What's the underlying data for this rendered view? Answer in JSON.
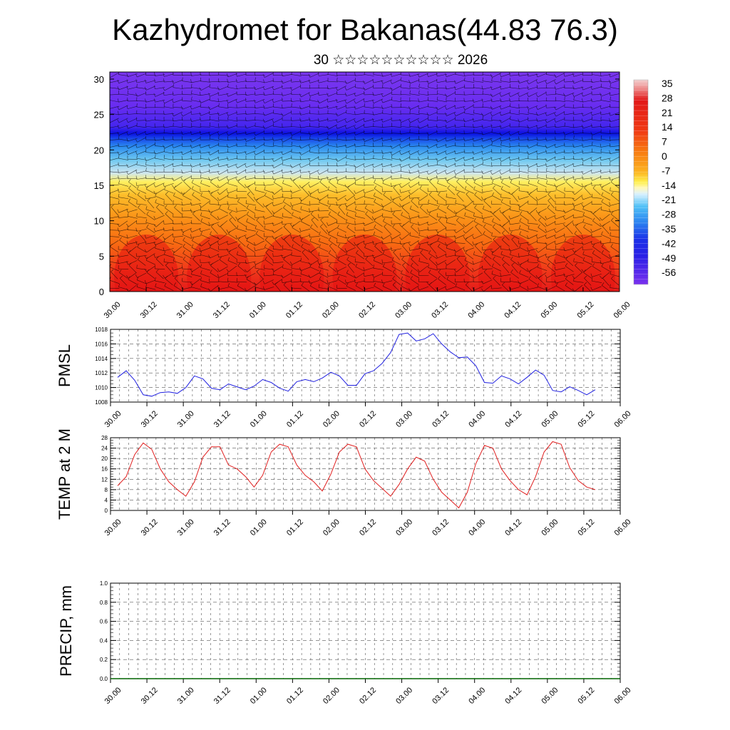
{
  "title": "Kazhydromet for Bakanas(44.83 76.3)",
  "subtitle": "30 ☆☆☆☆☆☆☆☆☆☆ 2026",
  "time_ticks": [
    "30.00",
    "30.12",
    "31.00",
    "31.12",
    "01.00",
    "01.12",
    "02.00",
    "02.12",
    "03.00",
    "03.12",
    "04.00",
    "04.12",
    "05.00",
    "05.12",
    "06.00"
  ],
  "colors": {
    "pmsl_line": "#2020e0",
    "temp_line": "#e02020",
    "precip_line": "#006400",
    "grid": "#555555"
  },
  "chart_data": [
    {
      "type": "heatmap",
      "name": "cross-section",
      "ylim": [
        0,
        31
      ],
      "yticks": [
        "0",
        "5",
        "10",
        "15",
        "20",
        "25",
        "30"
      ],
      "x_categories": "time_ticks",
      "colorbar_labels": [
        "35",
        "28",
        "21",
        "14",
        "7",
        "0",
        "-7",
        "-14",
        "-21",
        "-28",
        "-35",
        "-42",
        "-49",
        "-56"
      ],
      "colorbar_range": [
        -63,
        42
      ],
      "freezing_level_approx": 15.5,
      "tropopause_level_approx": 22,
      "overlay": "wind barbs"
    },
    {
      "type": "line",
      "name": "PMSL",
      "ylabel": "PMSL",
      "ylim": [
        1008,
        1018
      ],
      "yticks": [
        "1008",
        "1010",
        "1012",
        "1014",
        "1016",
        "1018"
      ],
      "values": [
        1011.4,
        1012.3,
        1011.0,
        1009.0,
        1008.8,
        1009.3,
        1009.4,
        1009.2,
        1010.0,
        1011.6,
        1011.2,
        1009.9,
        1009.7,
        1010.5,
        1010.1,
        1009.7,
        1010.2,
        1011.1,
        1010.7,
        1009.9,
        1009.5,
        1010.8,
        1011.1,
        1010.8,
        1011.3,
        1012.1,
        1011.6,
        1010.3,
        1010.3,
        1011.9,
        1012.3,
        1013.3,
        1014.8,
        1017.3,
        1017.5,
        1016.4,
        1016.7,
        1017.4,
        1016.0,
        1014.9,
        1014.1,
        1014.2,
        1013.0,
        1010.7,
        1010.6,
        1011.6,
        1011.2,
        1010.5,
        1011.4,
        1012.4,
        1011.7,
        1009.6,
        1009.4,
        1010.1,
        1009.6,
        1009.0,
        1009.7
      ]
    },
    {
      "type": "line",
      "name": "TEMP at 2 M",
      "ylabel": "TEMP at 2 M",
      "ylim": [
        0,
        28
      ],
      "yticks": [
        "0",
        "4",
        "8",
        "12",
        "16",
        "20",
        "24",
        "28"
      ],
      "values": [
        9.5,
        13,
        21.5,
        26,
        23.5,
        16,
        11,
        8,
        5.5,
        11,
        20.5,
        24.5,
        24.5,
        17.5,
        16,
        13,
        9,
        13.5,
        22.5,
        25.5,
        24.5,
        17.5,
        13.5,
        11,
        7.5,
        14,
        22.5,
        25.5,
        24.5,
        16,
        11.5,
        8.5,
        5.5,
        10,
        16,
        20.5,
        19,
        12,
        7,
        4,
        1,
        7,
        18,
        25,
        24,
        16,
        11.5,
        8,
        6,
        13,
        22.5,
        26.5,
        25.5,
        16.5,
        11.5,
        9,
        8
      ]
    },
    {
      "type": "line",
      "name": "PRECIP, mm",
      "ylabel": "PRECIP, mm",
      "ylim": [
        0,
        1.0
      ],
      "yticks": [
        "0.0",
        "0.2",
        "0.4",
        "0.6",
        "0.8",
        "1.0"
      ],
      "values": [
        0,
        0,
        0,
        0,
        0,
        0,
        0,
        0,
        0,
        0,
        0,
        0,
        0,
        0,
        0,
        0,
        0,
        0,
        0,
        0,
        0,
        0,
        0,
        0,
        0,
        0,
        0,
        0,
        0,
        0,
        0,
        0,
        0,
        0,
        0,
        0,
        0,
        0,
        0,
        0,
        0,
        0,
        0,
        0,
        0,
        0,
        0,
        0,
        0,
        0,
        0,
        0,
        0,
        0,
        0,
        0,
        0,
        0,
        0,
        0,
        0
      ]
    }
  ]
}
